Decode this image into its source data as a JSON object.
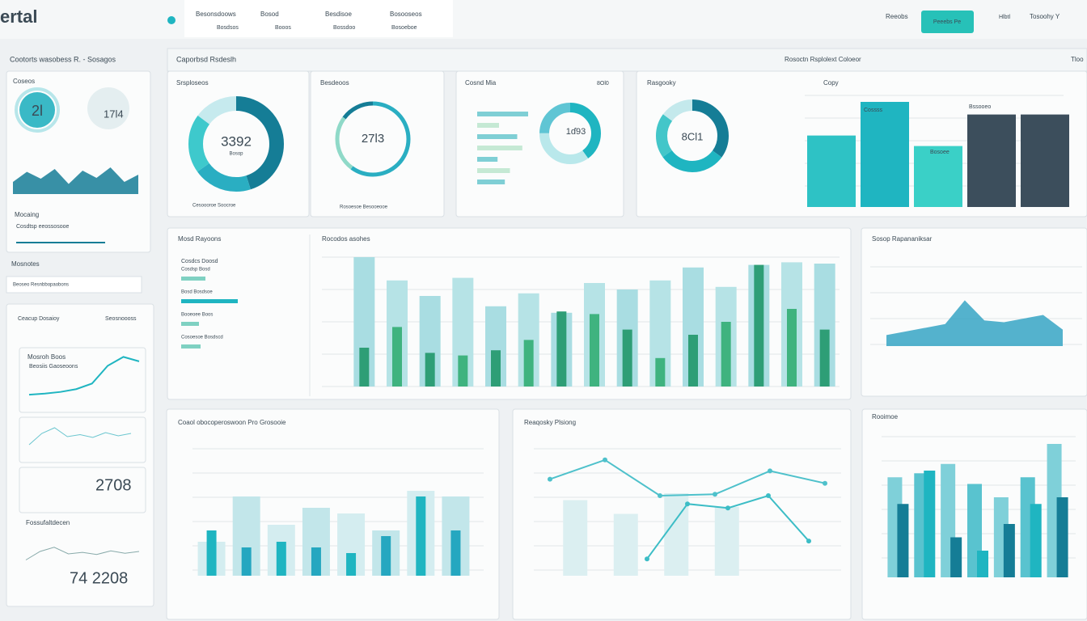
{
  "header": {
    "logo": "ertal",
    "nav": [
      "Besonsdoows",
      "Bosod",
      "Besdisoe",
      "Bosooseos"
    ],
    "nav_sub": [
      "Bosdsos",
      "Booos",
      "Bossdoo",
      "Bosoeboe"
    ],
    "link": "Reeobs",
    "button": "Peeebs Pe",
    "user": "Hlbtl",
    "account": "Tosoohy Y"
  },
  "sidebar": {
    "title": "Cootorts wasobess R. - Sosagos",
    "card_title": "Coseos",
    "donut_value": "2l",
    "side_value": "17l4",
    "area": [
      30,
      55,
      38,
      62,
      25,
      58,
      40,
      66,
      30,
      48
    ],
    "label": "Mocaing",
    "sublabel": "Cosdtsp eeossosooe",
    "section": "Mosnotes",
    "search": "Beoseo Resnbbopaobons",
    "group_title": "Ceacup Dosaioy",
    "group_link": "Seosnoooss",
    "mini_title": "Mosroh Boos",
    "mini_sub": "Beosiis Gaoseoons",
    "line1": [
      10,
      12,
      15,
      20,
      30,
      62,
      78,
      70
    ],
    "line2": [
      20,
      48,
      62,
      40,
      45,
      38,
      50,
      42,
      48
    ],
    "mini_value": "2708",
    "foot_title": "Fossufaltdecen",
    "foot_value": "74 2208"
  },
  "main": {
    "title": "Caporbsd Rsdeslh",
    "subtitle": "Rosoctn Rsplolext Coloeor",
    "corner": "Tloo"
  },
  "panels": [
    {
      "title": "Srsploseos",
      "value": "3392",
      "caption": "Bosop",
      "legend": "Cesoooroe Soocroe",
      "segments": [
        45,
        20,
        20,
        15
      ]
    },
    {
      "title": "Besdeoos",
      "value": "27l3",
      "legend": "Rosoesoe Besooeooe",
      "segments": [
        60,
        25,
        15
      ]
    },
    {
      "title": "Cosnd Mia",
      "badge": "8Ol0",
      "value": "1ɗ93",
      "bars": [
        70,
        30,
        55,
        62,
        28,
        45,
        38
      ],
      "segments": [
        40,
        35,
        25
      ]
    },
    {
      "title": "Rasgooky",
      "value": "8Cl1",
      "chart_title": "Copy",
      "bar_labels": [
        "Cossss",
        "Bosoee",
        "Bssooeo"
      ],
      "bars": [
        68,
        100,
        58,
        88,
        88
      ],
      "segments": [
        35,
        30,
        20,
        15
      ]
    },
    {
      "title": "Mosd Rayoons",
      "list_title": "Cosdcs Doosd",
      "items": [
        "Cosdsp Bosd",
        "Bosd Bosdsoe",
        "Booeoee Boos",
        "Cosoesoe Bosdscd"
      ],
      "item_values": [
        30,
        70,
        22,
        24
      ],
      "chart_title": "Rocodos asohes",
      "light": [
        100,
        82,
        70,
        84,
        62,
        72,
        57,
        80,
        75,
        82,
        92,
        77,
        94,
        96,
        95
      ],
      "green": [
        30,
        46,
        26,
        24,
        28,
        36,
        58,
        56,
        44,
        22,
        40,
        50,
        94,
        60,
        44
      ]
    },
    {
      "title": "Sosop Rapananiksar",
      "area": [
        12,
        16,
        20,
        24,
        50,
        28,
        26,
        30,
        34,
        18
      ]
    },
    {
      "title": "Coaol obocoperoswoon Pro Grosooie",
      "light": [
        30,
        70,
        45,
        60,
        55,
        40,
        75,
        70
      ],
      "teal": [
        40,
        25,
        30,
        25,
        20,
        35,
        70,
        40
      ]
    },
    {
      "title": "Reaqosky Plsiong",
      "line1": [
        72,
        86,
        60,
        61,
        78,
        69
      ],
      "line2": [
        14,
        54,
        51,
        60,
        27
      ],
      "faint": [
        55,
        45,
        60,
        50
      ]
    },
    {
      "title": "Rooimoe",
      "light": [
        75,
        78,
        85,
        70,
        60,
        75,
        100
      ],
      "teal": [
        55,
        80,
        30,
        20,
        40,
        55,
        60
      ]
    }
  ]
}
